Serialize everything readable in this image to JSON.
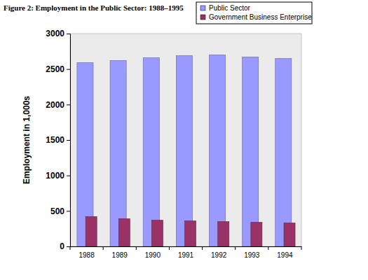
{
  "chart_data": {
    "type": "bar",
    "title": "Figure 2: Employment in the Public Sector: 1988–1995",
    "y_label": "Employment in 1,000s",
    "categories": [
      "1988",
      "1989",
      "1990",
      "1991",
      "1992",
      "1993",
      "1994"
    ],
    "series": [
      {
        "name": "Public Sector",
        "color": "#9999ff",
        "values": [
          2590,
          2620,
          2660,
          2690,
          2700,
          2670,
          2650
        ]
      },
      {
        "name": "Government Business Enterprise",
        "color": "#993366",
        "values": [
          420,
          390,
          370,
          360,
          350,
          340,
          330
        ]
      }
    ],
    "ylim": [
      0,
      3000
    ],
    "yticks": [
      0,
      500,
      1000,
      1500,
      2000,
      2500,
      3000
    ],
    "grid": false,
    "legend": "upper right"
  }
}
